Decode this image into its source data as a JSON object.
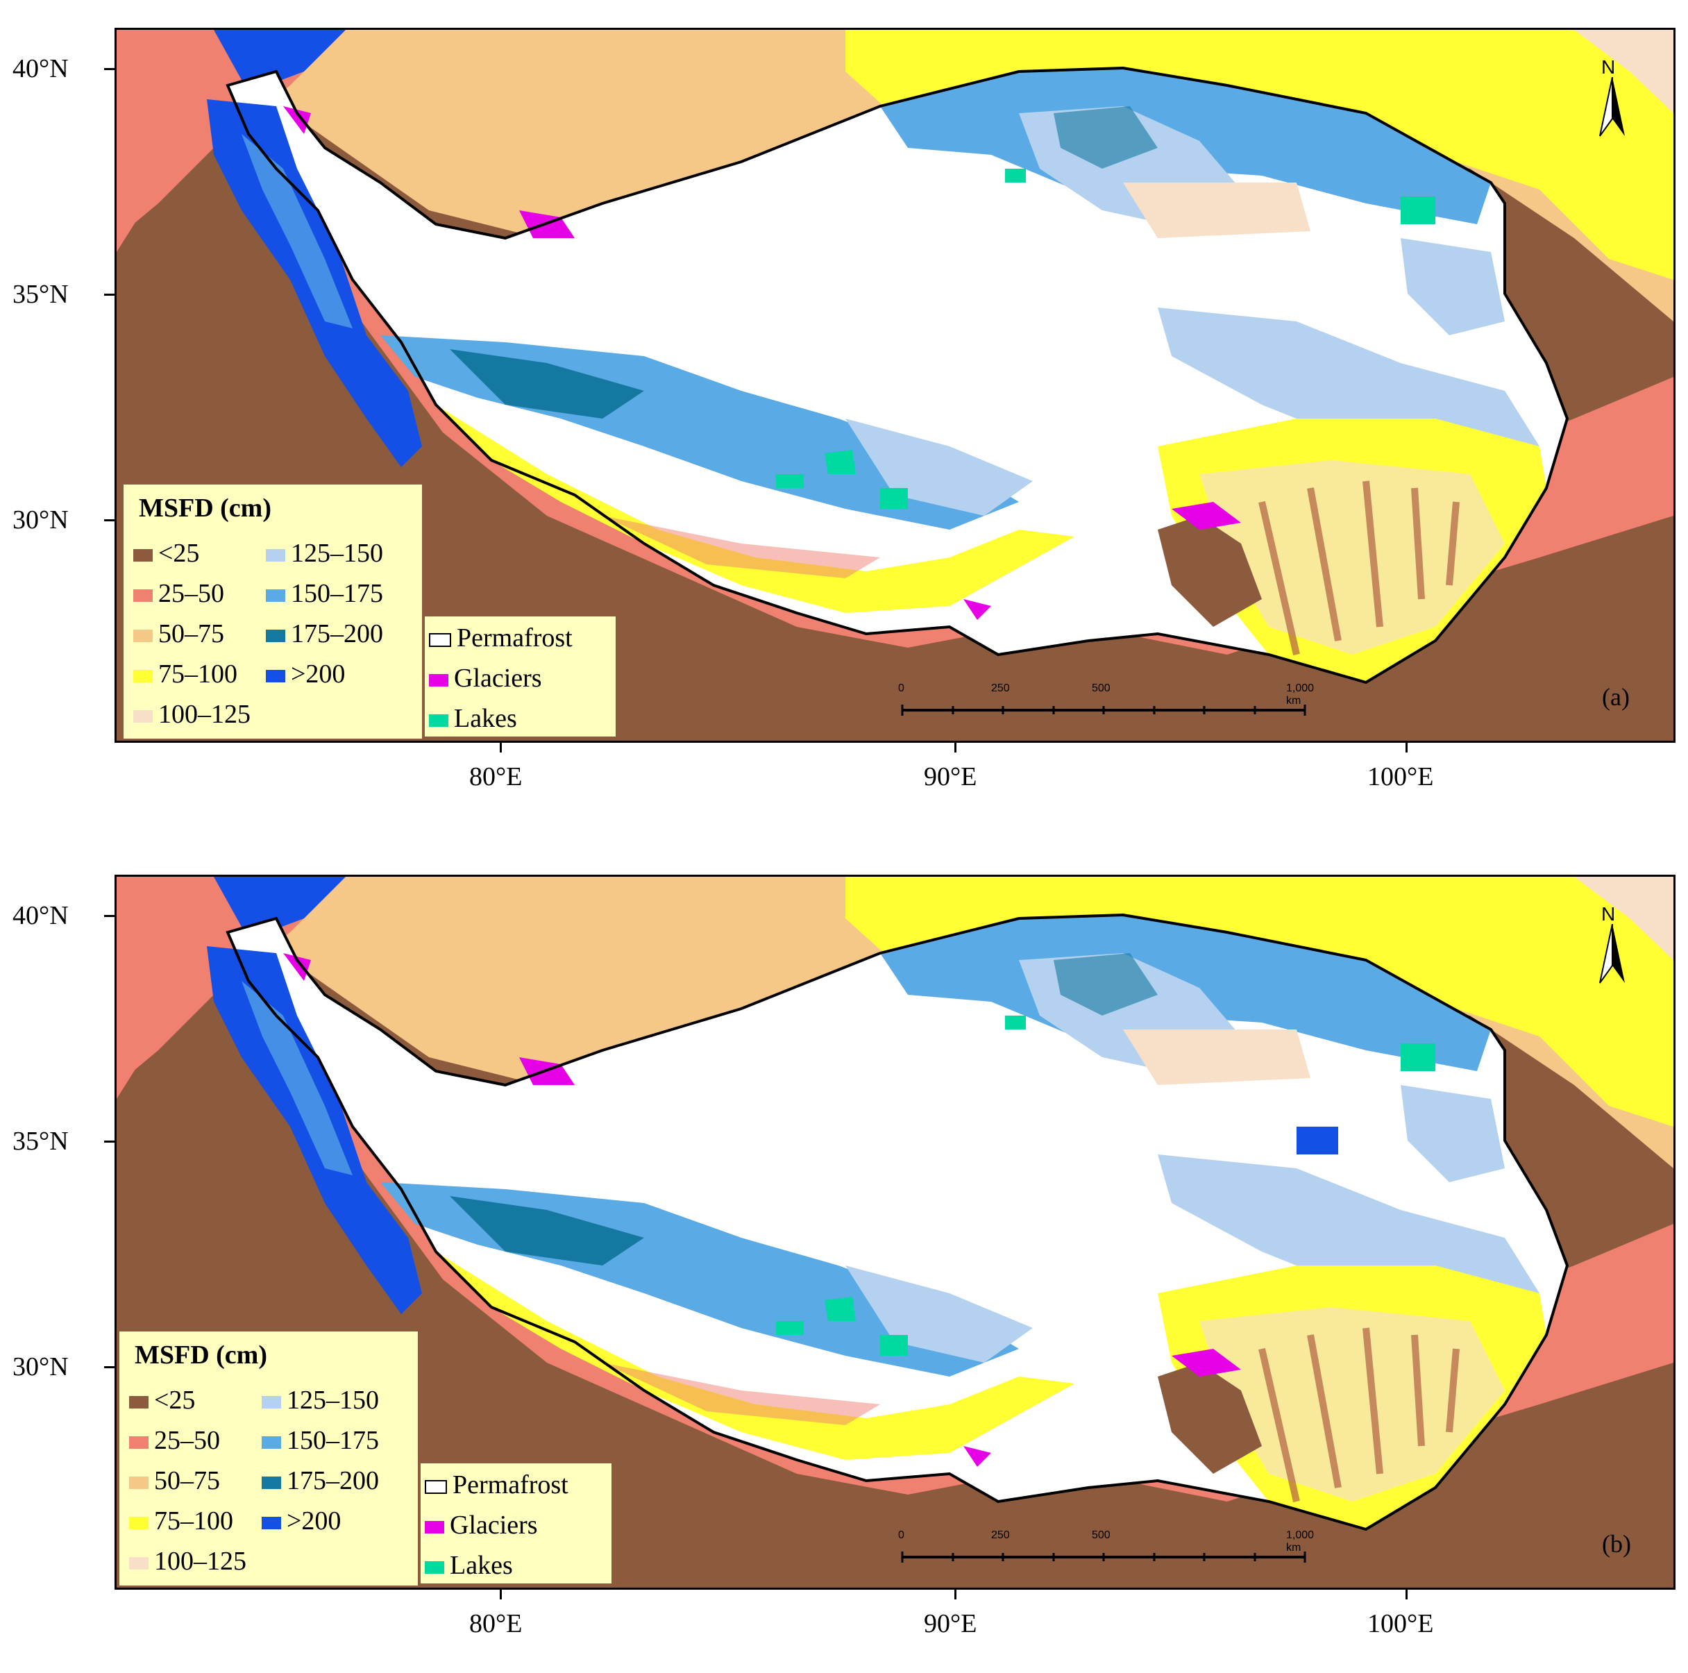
{
  "figure": {
    "panels": [
      {
        "tag": "(a)"
      },
      {
        "tag": "(b)"
      }
    ],
    "lat_labels": [
      "40°N",
      "35°N",
      "30°N"
    ],
    "lon_labels": [
      "80°E",
      "90°E",
      "100°E"
    ],
    "north_label": "N",
    "legend": {
      "title": "MSFD (cm)",
      "classes": [
        {
          "label": "<25",
          "color": "#8c5a3c"
        },
        {
          "label": "25–50",
          "color": "#f08070"
        },
        {
          "label": "50–75",
          "color": "#f5c888"
        },
        {
          "label": "75–100",
          "color": "#ffff33"
        },
        {
          "label": "100–125",
          "color": "#f7dfc8"
        },
        {
          "label": "125–150",
          "color": "#b4d2f0"
        },
        {
          "label": "150–175",
          "color": "#5aaae6"
        },
        {
          "label": "175–200",
          "color": "#1478a0"
        },
        {
          "label": ">200",
          "color": "#1450e6"
        }
      ],
      "overlays": [
        {
          "label": "Permafrost",
          "color": "#ffffff"
        },
        {
          "label": "Glaciers",
          "color": "#e600e6"
        },
        {
          "label": "Lakes",
          "color": "#00d9a0"
        }
      ]
    },
    "scale": {
      "labels": [
        "0",
        "250",
        "500",
        "1,000 km"
      ]
    }
  }
}
